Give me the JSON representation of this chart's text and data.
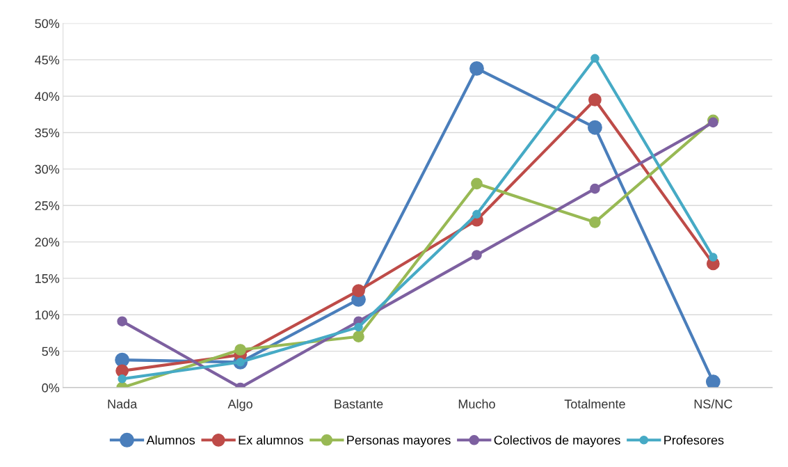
{
  "chart_data": {
    "type": "line",
    "categories": [
      "Nada",
      "Algo",
      "Bastante",
      "Mucho",
      "Totalmente",
      "NS/NC"
    ],
    "series": [
      {
        "name": "Alumnos",
        "color": "#4a7ebb",
        "values": [
          3.8,
          3.5,
          12.1,
          43.8,
          35.7,
          0.8
        ]
      },
      {
        "name": "Ex alumnos",
        "color": "#be4b48",
        "values": [
          2.3,
          4.5,
          13.3,
          23.0,
          39.5,
          17.0
        ]
      },
      {
        "name": "Personas mayores",
        "color": "#98b954",
        "values": [
          0.0,
          5.2,
          7.0,
          28.0,
          22.7,
          36.7
        ]
      },
      {
        "name": "Colectivos de mayores",
        "color": "#7d60a0",
        "values": [
          9.1,
          0.0,
          9.1,
          18.2,
          27.3,
          36.4
        ]
      },
      {
        "name": "Profesores",
        "color": "#46aac5",
        "values": [
          1.2,
          3.5,
          8.3,
          23.8,
          45.2,
          17.9
        ]
      }
    ],
    "ylim": [
      0,
      50
    ],
    "yticks": [
      {
        "value": 0,
        "label": "0%"
      },
      {
        "value": 5,
        "label": "5%"
      },
      {
        "value": 10,
        "label": "10%"
      },
      {
        "value": 15,
        "label": "15%"
      },
      {
        "value": 20,
        "label": "20%"
      },
      {
        "value": 25,
        "label": "25%"
      },
      {
        "value": 30,
        "label": "30%"
      },
      {
        "value": 35,
        "label": "35%"
      },
      {
        "value": 40,
        "label": "40%"
      },
      {
        "value": 45,
        "label": "45%"
      },
      {
        "value": 50,
        "label": "50%"
      }
    ],
    "grid": "y",
    "legend": "bottom",
    "marker": "circle",
    "line_style": "solid"
  }
}
